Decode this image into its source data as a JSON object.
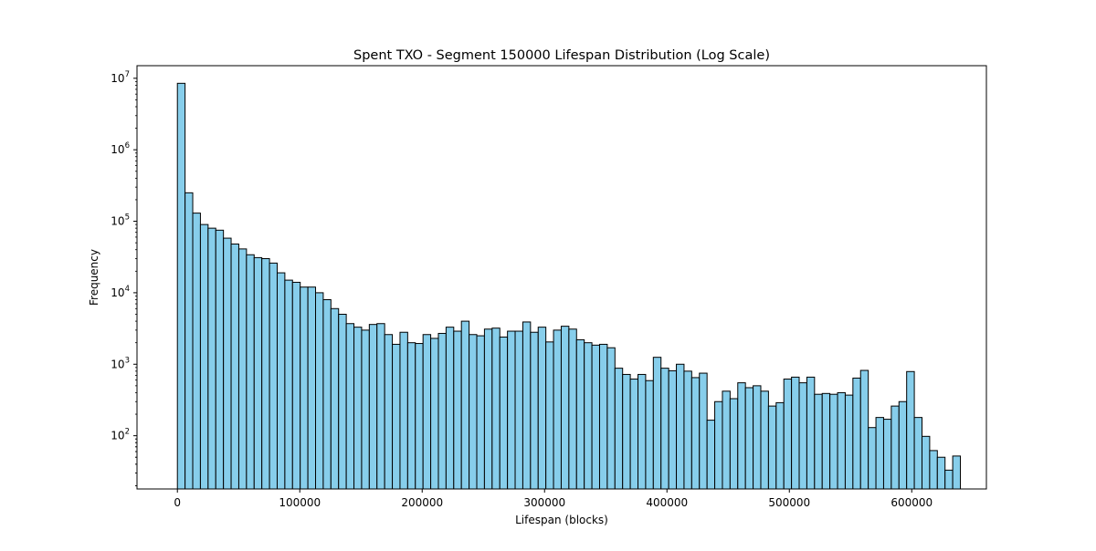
{
  "chart_data": {
    "type": "bar",
    "title": "Spent TXO - Segment 150000 Lifespan Distribution (Log Scale)",
    "xlabel": "Lifespan (blocks)",
    "ylabel": "Frequency",
    "yscale": "log",
    "grid": false,
    "legend": "none",
    "bar_color": "#87ceeb",
    "edge_color": "#000000",
    "xlim": [
      -33000,
      661000
    ],
    "ylim": [
      18,
      15000000
    ],
    "x_ticks": [
      {
        "value": 0,
        "label": "0"
      },
      {
        "value": 100000,
        "label": "100000"
      },
      {
        "value": 200000,
        "label": "200000"
      },
      {
        "value": 300000,
        "label": "300000"
      },
      {
        "value": 400000,
        "label": "400000"
      },
      {
        "value": 500000,
        "label": "500000"
      },
      {
        "value": 600000,
        "label": "600000"
      }
    ],
    "y_ticks": [
      {
        "value": 100,
        "base": "10",
        "exp": "2"
      },
      {
        "value": 1000,
        "base": "10",
        "exp": "3"
      },
      {
        "value": 10000,
        "base": "10",
        "exp": "4"
      },
      {
        "value": 100000,
        "base": "10",
        "exp": "5"
      },
      {
        "value": 1000000,
        "base": "10",
        "exp": "6"
      },
      {
        "value": 10000000,
        "base": "10",
        "exp": "7"
      }
    ],
    "bin_start": 0,
    "bin_width": 6272,
    "values": [
      8500000,
      250000,
      130000,
      90000,
      80000,
      75000,
      58000,
      48000,
      41000,
      34000,
      31000,
      30000,
      26000,
      19000,
      15000,
      14000,
      12000,
      12000,
      10000,
      8000,
      6000,
      5000,
      3700,
      3300,
      3000,
      3600,
      3700,
      2600,
      1900,
      2800,
      2000,
      1950,
      2600,
      2300,
      2700,
      3300,
      2900,
      4000,
      2600,
      2500,
      3100,
      3200,
      2400,
      2900,
      2900,
      3900,
      2800,
      3300,
      2050,
      3000,
      3400,
      3100,
      2200,
      2000,
      1850,
      1900,
      1700,
      880,
      720,
      620,
      720,
      590,
      1250,
      880,
      810,
      1000,
      800,
      650,
      750,
      165,
      300,
      420,
      330,
      550,
      470,
      500,
      420,
      260,
      290,
      620,
      660,
      550,
      660,
      380,
      390,
      380,
      400,
      370,
      640,
      820,
      130,
      180,
      170,
      260,
      300,
      790,
      180,
      98,
      62,
      50,
      33,
      52
    ]
  }
}
